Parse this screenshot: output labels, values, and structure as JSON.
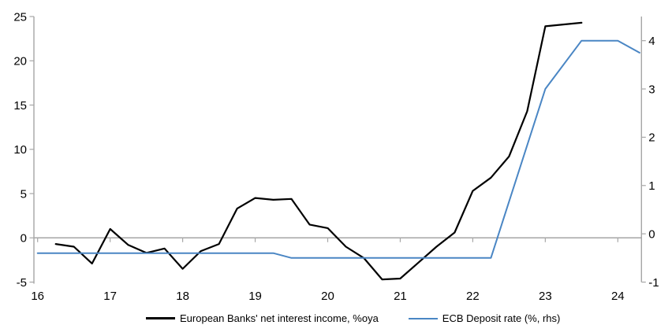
{
  "chart_data": {
    "type": "line",
    "title": "",
    "x_axis": {
      "tick_labels": [
        "16",
        "17",
        "18",
        "19",
        "20",
        "21",
        "22",
        "23",
        "24"
      ],
      "tick_years": [
        16,
        17,
        18,
        19,
        20,
        21,
        22,
        23,
        24
      ],
      "range": [
        15.95,
        24.36
      ]
    },
    "left_axis": {
      "label": "",
      "ticks": [
        25,
        20,
        15,
        10,
        5,
        0,
        -5
      ],
      "range": [
        -5,
        25
      ]
    },
    "right_axis": {
      "label": "",
      "ticks": [
        4,
        3,
        2,
        1,
        0,
        -1
      ],
      "range": [
        -1,
        4.5
      ]
    },
    "grid": "zero-line-only",
    "legend_position": "bottom",
    "series": [
      {
        "name": "European Banks' net interest income, %oya",
        "axis": "left",
        "color": "#000000",
        "line_width": 2.2,
        "x": [
          16.25,
          16.5,
          16.75,
          17.0,
          17.25,
          17.5,
          17.75,
          18.0,
          18.25,
          18.5,
          18.75,
          19.0,
          19.25,
          19.5,
          19.75,
          20.0,
          20.25,
          20.5,
          20.75,
          21.0,
          21.25,
          21.5,
          21.75,
          22.0,
          22.25,
          22.5,
          22.75,
          23.0,
          23.25,
          23.5
        ],
        "values": [
          -0.7,
          -1.0,
          -2.9,
          1.0,
          -0.8,
          -1.7,
          -1.2,
          -3.5,
          -1.5,
          -0.7,
          3.3,
          4.5,
          4.3,
          4.4,
          1.5,
          1.1,
          -1.0,
          -2.3,
          -4.7,
          -4.6,
          -2.8,
          -1.0,
          0.6,
          5.3,
          6.8,
          9.2,
          14.3,
          23.9,
          24.1,
          24.3
        ]
      },
      {
        "name": "ECB Deposit rate (%, rhs)",
        "axis": "right",
        "color": "#4a86c4",
        "line_width": 2.0,
        "x": [
          16.0,
          19.25,
          19.5,
          22.25,
          23.0,
          23.5,
          24.0,
          24.3
        ],
        "values": [
          -0.4,
          -0.4,
          -0.5,
          -0.5,
          3.0,
          4.0,
          4.0,
          3.75
        ]
      }
    ],
    "colors": {
      "axis_line": "#a6a6a6",
      "zero_line": "#a6a6a6",
      "text": "#000000",
      "background": "#ffffff"
    }
  }
}
